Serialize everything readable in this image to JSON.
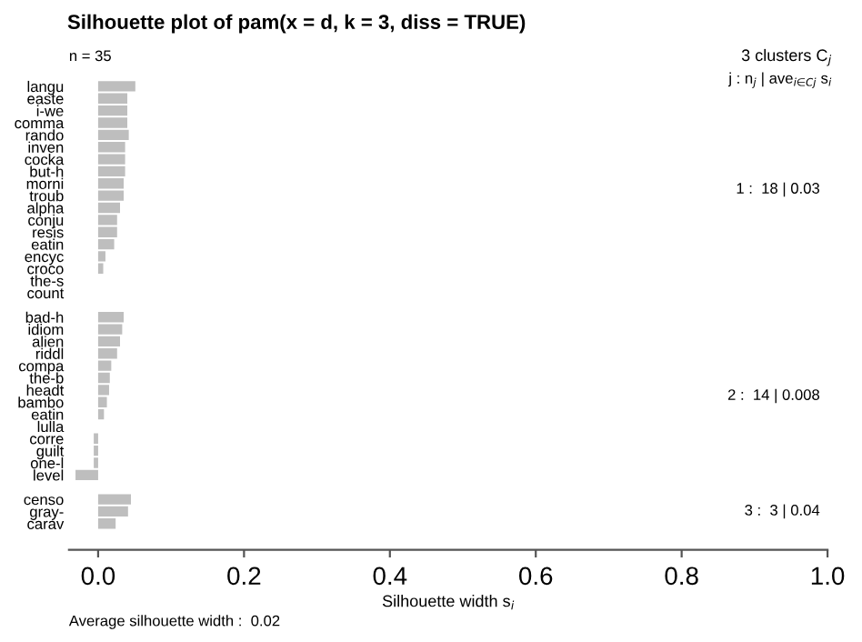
{
  "chart_data": {
    "type": "bar",
    "orientation": "horizontal",
    "title": "Silhouette plot of pam(x = d, k = 3, diss = TRUE)",
    "subtitle": "n = 35",
    "xlabel": "Silhouette width s$_{i}$",
    "categories": [
      "langu",
      "easte",
      "i-we",
      "comma",
      "rando",
      "inven",
      "cocka",
      "but-h",
      "morni",
      "troub",
      "alpha",
      "conju",
      "resis",
      "eatin",
      "encyc",
      "croco",
      "the-s",
      "count",
      null,
      "bad-h",
      "idiom",
      "alien",
      "riddl",
      "compa",
      "the-b",
      "headt",
      "bambo",
      "eatin",
      "lulla",
      "corre",
      "guilt",
      "one-l",
      "level",
      null,
      "censo",
      "gray-",
      "carav"
    ],
    "values": [
      0.051,
      0.04,
      0.04,
      0.04,
      0.042,
      0.037,
      0.037,
      0.037,
      0.035,
      0.035,
      0.03,
      0.026,
      0.026,
      0.022,
      0.01,
      0.007,
      0,
      0,
      null,
      0.035,
      0.033,
      0.03,
      0.026,
      0.018,
      0.016,
      0.015,
      0.012,
      0.008,
      0,
      -0.006,
      -0.006,
      -0.006,
      -0.031,
      null,
      0.045,
      0.041,
      0.024
    ],
    "color": "#bebebe",
    "xlim": [
      -0.04,
      1.0
    ],
    "xticks": [
      {
        "value": 0,
        "label": "0.0"
      },
      0.2,
      0.4,
      0.6,
      0.8,
      {
        "value": 1,
        "label": "1.0"
      }
    ],
    "annotations": [
      "3 clusters C$_{j}$",
      "j : n$_{j}$ | ave$_{i∈Cj}$ s$_{i}$",
      "1 :  18 | 0.03",
      "2 :  14 | 0.008",
      "3 :  3 | 0.04",
      "Average silhouette width :  0.02"
    ],
    "grid": false,
    "legend": false
  }
}
